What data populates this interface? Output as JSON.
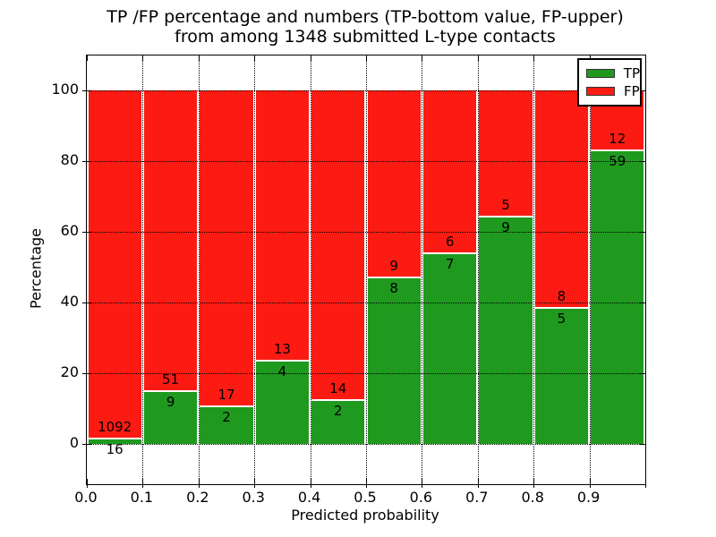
{
  "title": {
    "line1": "TP /FP percentage and numbers (TP-bottom value, FP-upper)",
    "line2": "from among 1348 submitted L-type contacts"
  },
  "chart_data": {
    "type": "bar",
    "stacked": true,
    "normalized": "each bin scaled to 100%",
    "title": "TP /FP percentage and numbers (TP-bottom value, FP-upper)\nfrom among 1348 submitted L-type contacts",
    "xlabel": "Predicted probability",
    "ylabel": "Percentage",
    "total_contacts": 1348,
    "bins": [
      "0.0-0.1",
      "0.1-0.2",
      "0.2-0.3",
      "0.3-0.4",
      "0.4-0.5",
      "0.5-0.6",
      "0.6-0.7",
      "0.7-0.8",
      "0.8-0.9",
      "0.9-1.0"
    ],
    "xtick_labels": [
      "0.0",
      "0.1",
      "0.2",
      "0.3",
      "0.4",
      "0.5",
      "0.6",
      "0.7",
      "0.8",
      "0.9"
    ],
    "xtick_values": [
      0.0,
      0.1,
      0.2,
      0.3,
      0.4,
      0.5,
      0.6,
      0.7,
      0.8,
      0.9
    ],
    "ytick_labels": [
      "0",
      "20",
      "40",
      "60",
      "80",
      "100"
    ],
    "ytick_values": [
      0,
      20,
      40,
      60,
      80,
      100
    ],
    "xlim": [
      0.0,
      1.0
    ],
    "ylim": [
      -11.4,
      109.9
    ],
    "grid": "dotted, both axes",
    "legend_position": "upper right",
    "bar_edge_color": "#ffffff",
    "series": [
      {
        "name": "TP",
        "color": "#1f9a1f",
        "counts": [
          16,
          9,
          2,
          4,
          2,
          8,
          7,
          9,
          5,
          59
        ],
        "percent": [
          1.4,
          15.0,
          10.5,
          23.5,
          12.5,
          47.1,
          53.8,
          64.3,
          38.5,
          83.1
        ]
      },
      {
        "name": "FP",
        "color": "#fb1b13",
        "counts": [
          1092,
          51,
          17,
          13,
          14,
          9,
          6,
          5,
          8,
          12
        ],
        "percent": [
          98.6,
          85.0,
          89.5,
          76.5,
          87.5,
          52.9,
          46.2,
          35.7,
          61.5,
          16.9
        ]
      }
    ]
  }
}
